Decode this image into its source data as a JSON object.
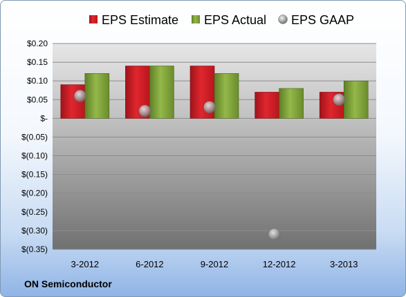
{
  "company": "ON Semiconductor",
  "colors": {
    "estimate": "#d11f26",
    "actual": "#7fa33a",
    "gaap": "#b3b3b3"
  },
  "chart_data": {
    "type": "bar",
    "categories": [
      "3-2012",
      "6-2012",
      "9-2012",
      "12-2012",
      "3-2013"
    ],
    "series": [
      {
        "name": "EPS Estimate",
        "kind": "bar",
        "values": [
          0.09,
          0.14,
          0.14,
          0.07,
          0.07
        ]
      },
      {
        "name": "EPS Actual",
        "kind": "bar",
        "values": [
          0.12,
          0.14,
          0.12,
          0.08,
          0.1
        ]
      },
      {
        "name": "EPS GAAP",
        "kind": "marker",
        "values": [
          0.06,
          0.02,
          0.03,
          -0.31,
          0.05
        ]
      }
    ],
    "ylim": [
      -0.35,
      0.2
    ],
    "yticks": [
      0.2,
      0.15,
      0.1,
      0.05,
      0,
      -0.05,
      -0.1,
      -0.15,
      -0.2,
      -0.25,
      -0.3,
      -0.35
    ],
    "ytick_labels": [
      "$0.20",
      "$0.15",
      "$0.10",
      "$0.05",
      "$-",
      "$(0.05)",
      "$(0.10)",
      "$(0.15)",
      "$(0.20)",
      "$(0.25)",
      "$(0.30)",
      "$(0.35)"
    ],
    "legend_position": "top",
    "grid": true,
    "title": "",
    "xlabel": "",
    "ylabel": ""
  }
}
